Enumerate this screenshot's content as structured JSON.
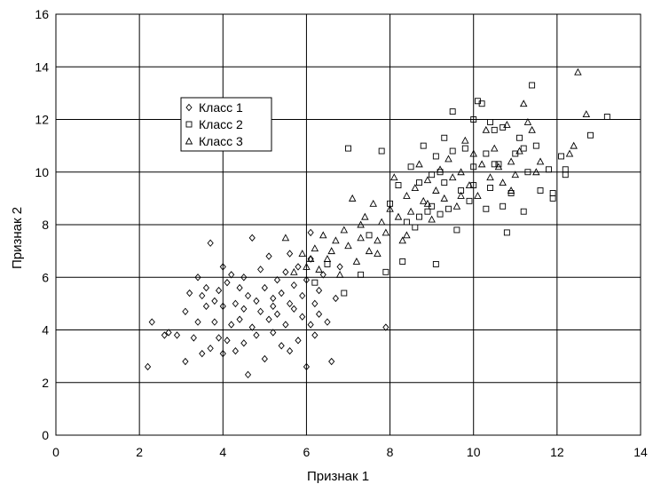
{
  "chart_data": {
    "type": "scatter",
    "xlabel": "Признак 1",
    "ylabel": "Признак 2",
    "xlim": [
      0,
      14
    ],
    "ylim": [
      0,
      16
    ],
    "xticks": [
      "0",
      "2",
      "4",
      "6",
      "8",
      "10",
      "12",
      "14"
    ],
    "yticks": [
      "0",
      "2",
      "4",
      "6",
      "8",
      "10",
      "12",
      "14",
      "16"
    ],
    "grid": true,
    "legend_position": "top-left",
    "series": [
      {
        "name": "Класс 1",
        "marker": "diamond",
        "points": [
          [
            2.2,
            2.6
          ],
          [
            2.3,
            4.3
          ],
          [
            2.6,
            3.8
          ],
          [
            2.7,
            3.9
          ],
          [
            2.9,
            3.8
          ],
          [
            3.1,
            4.7
          ],
          [
            3.1,
            2.8
          ],
          [
            3.2,
            5.4
          ],
          [
            3.4,
            4.3
          ],
          [
            3.4,
            6.0
          ],
          [
            3.5,
            3.1
          ],
          [
            3.5,
            5.3
          ],
          [
            3.6,
            5.6
          ],
          [
            3.6,
            4.9
          ],
          [
            3.7,
            7.3
          ],
          [
            3.7,
            3.3
          ],
          [
            3.8,
            5.1
          ],
          [
            3.8,
            4.3
          ],
          [
            3.9,
            5.5
          ],
          [
            3.9,
            3.7
          ],
          [
            4.0,
            6.4
          ],
          [
            4.0,
            4.9
          ],
          [
            4.1,
            5.8
          ],
          [
            4.1,
            3.6
          ],
          [
            4.2,
            4.2
          ],
          [
            4.2,
            6.1
          ],
          [
            4.3,
            5.0
          ],
          [
            4.3,
            3.2
          ],
          [
            4.4,
            5.6
          ],
          [
            4.4,
            4.4
          ],
          [
            4.5,
            6.0
          ],
          [
            4.5,
            4.8
          ],
          [
            4.6,
            2.3
          ],
          [
            4.6,
            5.3
          ],
          [
            4.7,
            7.5
          ],
          [
            4.7,
            4.1
          ],
          [
            4.8,
            5.1
          ],
          [
            4.8,
            3.8
          ],
          [
            4.9,
            6.3
          ],
          [
            4.9,
            4.7
          ],
          [
            5.0,
            5.6
          ],
          [
            5.0,
            2.9
          ],
          [
            5.1,
            4.4
          ],
          [
            5.1,
            6.8
          ],
          [
            5.2,
            5.2
          ],
          [
            5.2,
            3.9
          ],
          [
            5.3,
            5.9
          ],
          [
            5.3,
            4.6
          ],
          [
            5.4,
            3.4
          ],
          [
            5.4,
            5.4
          ],
          [
            5.5,
            6.2
          ],
          [
            5.5,
            4.2
          ],
          [
            5.6,
            5.0
          ],
          [
            5.6,
            3.2
          ],
          [
            5.7,
            5.7
          ],
          [
            5.7,
            4.8
          ],
          [
            5.8,
            6.4
          ],
          [
            5.8,
            3.6
          ],
          [
            5.9,
            5.3
          ],
          [
            5.9,
            4.5
          ],
          [
            6.0,
            2.6
          ],
          [
            6.0,
            5.9
          ],
          [
            6.1,
            4.2
          ],
          [
            6.1,
            6.7
          ],
          [
            6.2,
            5.0
          ],
          [
            6.2,
            3.8
          ],
          [
            6.3,
            5.5
          ],
          [
            6.3,
            4.6
          ],
          [
            6.4,
            6.1
          ],
          [
            6.5,
            4.3
          ],
          [
            6.6,
            2.8
          ],
          [
            6.7,
            5.2
          ],
          [
            6.1,
            7.7
          ],
          [
            6.8,
            6.4
          ],
          [
            7.9,
            4.1
          ],
          [
            4.0,
            3.1
          ],
          [
            4.5,
            3.5
          ],
          [
            5.2,
            4.9
          ],
          [
            5.6,
            6.9
          ],
          [
            3.3,
            3.7
          ]
        ]
      },
      {
        "name": "Класс 2",
        "marker": "square",
        "points": [
          [
            6.2,
            5.8
          ],
          [
            6.5,
            6.5
          ],
          [
            6.9,
            5.4
          ],
          [
            7.0,
            10.9
          ],
          [
            7.3,
            6.1
          ],
          [
            7.5,
            7.6
          ],
          [
            7.8,
            10.8
          ],
          [
            7.9,
            6.2
          ],
          [
            8.0,
            8.8
          ],
          [
            8.2,
            9.5
          ],
          [
            8.3,
            6.6
          ],
          [
            8.4,
            8.1
          ],
          [
            8.5,
            10.2
          ],
          [
            8.6,
            7.9
          ],
          [
            8.7,
            9.6
          ],
          [
            8.8,
            11.0
          ],
          [
            8.9,
            8.5
          ],
          [
            9.0,
            9.9
          ],
          [
            9.1,
            10.6
          ],
          [
            9.1,
            6.5
          ],
          [
            9.2,
            8.4
          ],
          [
            9.3,
            9.6
          ],
          [
            9.3,
            11.3
          ],
          [
            9.4,
            8.6
          ],
          [
            9.5,
            10.8
          ],
          [
            9.5,
            12.3
          ],
          [
            9.6,
            7.8
          ],
          [
            9.7,
            9.3
          ],
          [
            9.8,
            10.9
          ],
          [
            9.9,
            8.9
          ],
          [
            10.0,
            12.0
          ],
          [
            10.0,
            9.5
          ],
          [
            10.1,
            12.7
          ],
          [
            10.2,
            12.6
          ],
          [
            10.3,
            10.7
          ],
          [
            10.3,
            8.6
          ],
          [
            10.4,
            9.4
          ],
          [
            10.5,
            11.6
          ],
          [
            10.6,
            10.3
          ],
          [
            10.7,
            8.7
          ],
          [
            10.7,
            11.7
          ],
          [
            10.8,
            7.7
          ],
          [
            10.9,
            9.2
          ],
          [
            11.0,
            10.7
          ],
          [
            11.1,
            11.3
          ],
          [
            11.2,
            8.5
          ],
          [
            11.3,
            10.0
          ],
          [
            11.4,
            13.3
          ],
          [
            11.5,
            11.0
          ],
          [
            11.6,
            9.3
          ],
          [
            11.9,
            9.0
          ],
          [
            11.9,
            9.2
          ],
          [
            12.1,
            10.6
          ],
          [
            12.2,
            9.9
          ],
          [
            12.8,
            11.4
          ],
          [
            13.2,
            12.1
          ],
          [
            12.2,
            10.1
          ],
          [
            11.8,
            10.1
          ],
          [
            11.2,
            10.9
          ],
          [
            10.5,
            10.3
          ],
          [
            9.0,
            8.7
          ],
          [
            8.7,
            8.3
          ],
          [
            9.2,
            10.0
          ],
          [
            10.0,
            10.2
          ],
          [
            10.4,
            11.9
          ]
        ]
      },
      {
        "name": "Класс 3",
        "marker": "triangle",
        "points": [
          [
            5.5,
            7.5
          ],
          [
            5.7,
            6.2
          ],
          [
            5.9,
            6.9
          ],
          [
            6.0,
            6.4
          ],
          [
            6.2,
            7.1
          ],
          [
            6.3,
            6.3
          ],
          [
            6.4,
            7.6
          ],
          [
            6.5,
            6.7
          ],
          [
            6.6,
            7.0
          ],
          [
            6.7,
            7.4
          ],
          [
            6.8,
            6.1
          ],
          [
            6.9,
            7.8
          ],
          [
            7.0,
            7.2
          ],
          [
            7.1,
            9.0
          ],
          [
            7.2,
            6.6
          ],
          [
            7.3,
            7.5
          ],
          [
            7.4,
            8.3
          ],
          [
            7.5,
            7.0
          ],
          [
            7.6,
            8.8
          ],
          [
            7.7,
            7.4
          ],
          [
            7.8,
            8.1
          ],
          [
            7.9,
            7.7
          ],
          [
            8.0,
            8.6
          ],
          [
            8.1,
            9.8
          ],
          [
            8.2,
            8.3
          ],
          [
            8.3,
            7.4
          ],
          [
            8.4,
            9.1
          ],
          [
            8.5,
            8.5
          ],
          [
            8.6,
            9.4
          ],
          [
            8.7,
            10.3
          ],
          [
            8.8,
            8.9
          ],
          [
            8.9,
            9.7
          ],
          [
            9.0,
            8.2
          ],
          [
            9.1,
            9.3
          ],
          [
            9.2,
            10.1
          ],
          [
            9.3,
            9.0
          ],
          [
            9.4,
            10.5
          ],
          [
            9.5,
            9.8
          ],
          [
            9.6,
            8.7
          ],
          [
            9.7,
            10.0
          ],
          [
            9.8,
            11.2
          ],
          [
            9.9,
            9.5
          ],
          [
            10.0,
            10.7
          ],
          [
            10.1,
            9.1
          ],
          [
            10.2,
            10.3
          ],
          [
            10.3,
            11.6
          ],
          [
            10.4,
            9.8
          ],
          [
            10.5,
            10.9
          ],
          [
            10.6,
            10.2
          ],
          [
            10.7,
            9.6
          ],
          [
            10.8,
            11.8
          ],
          [
            10.9,
            10.4
          ],
          [
            11.0,
            9.9
          ],
          [
            11.1,
            10.8
          ],
          [
            11.2,
            12.6
          ],
          [
            11.3,
            11.9
          ],
          [
            11.5,
            10.0
          ],
          [
            11.6,
            10.4
          ],
          [
            12.3,
            10.7
          ],
          [
            12.4,
            11.0
          ],
          [
            12.5,
            13.8
          ],
          [
            12.7,
            12.2
          ],
          [
            7.7,
            6.9
          ],
          [
            8.4,
            7.6
          ],
          [
            6.1,
            6.7
          ],
          [
            7.3,
            8.0
          ],
          [
            8.9,
            8.8
          ],
          [
            9.7,
            9.1
          ],
          [
            10.9,
            9.3
          ],
          [
            11.4,
            11.6
          ]
        ]
      }
    ]
  }
}
